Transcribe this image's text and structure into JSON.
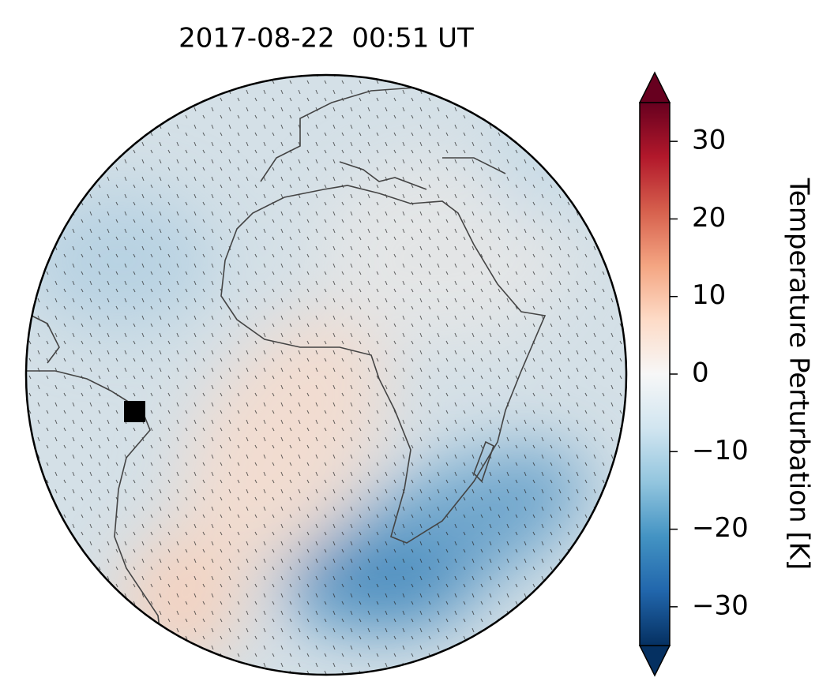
{
  "map": {
    "title": "2017-08-22  00:51 UT",
    "colorbar": {
      "label": "Temperature Perturbation [K]",
      "lim": [
        -35,
        35
      ],
      "extend": "both",
      "ticks": [
        {
          "value": -30,
          "label": "−30"
        },
        {
          "value": -20,
          "label": "−20"
        },
        {
          "value": -10,
          "label": "−10"
        },
        0,
        10,
        20,
        30
      ]
    }
  }
}
